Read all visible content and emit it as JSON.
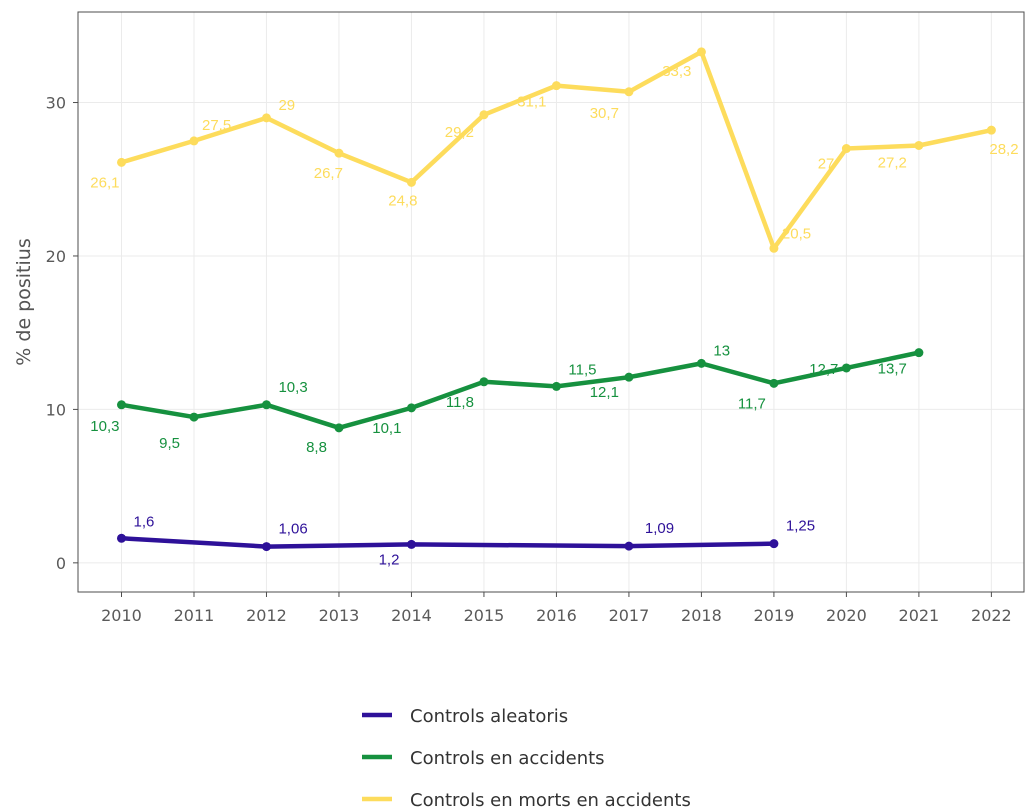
{
  "chart_data": {
    "type": "line",
    "title": "",
    "xlabel": "",
    "ylabel": "% de positius",
    "x": [
      2010,
      2011,
      2012,
      2013,
      2014,
      2015,
      2016,
      2017,
      2018,
      2019,
      2020,
      2021,
      2022
    ],
    "x_tick_labels": [
      "2010",
      "2011",
      "2012",
      "2013",
      "2014",
      "2015",
      "2016",
      "2017",
      "2018",
      "2019",
      "2020",
      "2021",
      "2022"
    ],
    "xlim": [
      2009.4,
      2022.45
    ],
    "ylim": [
      -1.9,
      35.9
    ],
    "y_ticks": [
      0,
      10,
      20,
      30
    ],
    "y_tick_labels": [
      "0",
      "10",
      "20",
      "30"
    ],
    "grid": true,
    "legend_position": "bottom",
    "series": [
      {
        "name": "Controls aleatoris",
        "color": "#2e1199",
        "points": [
          {
            "x": 2010,
            "y": 1.6,
            "label": "1,6"
          },
          {
            "x": 2012,
            "y": 1.06,
            "label": "1,06"
          },
          {
            "x": 2014,
            "y": 1.2,
            "label": "1,2"
          },
          {
            "x": 2017,
            "y": 1.09,
            "label": "1,09"
          },
          {
            "x": 2019,
            "y": 1.25,
            "label": "1,25"
          }
        ]
      },
      {
        "name": "Controls en accidents",
        "color": "#16913f",
        "points": [
          {
            "x": 2010,
            "y": 10.3,
            "label": "10,3"
          },
          {
            "x": 2011,
            "y": 9.5,
            "label": "9,5"
          },
          {
            "x": 2012,
            "y": 10.3,
            "label": "10,3"
          },
          {
            "x": 2013,
            "y": 8.8,
            "label": "8,8"
          },
          {
            "x": 2014,
            "y": 10.1,
            "label": "10,1"
          },
          {
            "x": 2015,
            "y": 11.8,
            "label": "11,8"
          },
          {
            "x": 2016,
            "y": 11.5,
            "label": "11,5"
          },
          {
            "x": 2017,
            "y": 12.1,
            "label": "12,1"
          },
          {
            "x": 2018,
            "y": 13,
            "label": "13"
          },
          {
            "x": 2019,
            "y": 11.7,
            "label": "11,7"
          },
          {
            "x": 2020,
            "y": 12.7,
            "label": "12,7"
          },
          {
            "x": 2021,
            "y": 13.7,
            "label": "13,7"
          }
        ]
      },
      {
        "name": "Controls en morts en accidents",
        "color": "#fddc5c",
        "points": [
          {
            "x": 2010,
            "y": 26.1,
            "label": "26,1"
          },
          {
            "x": 2011,
            "y": 27.5,
            "label": "27,5"
          },
          {
            "x": 2012,
            "y": 29,
            "label": "29"
          },
          {
            "x": 2013,
            "y": 26.7,
            "label": "26,7"
          },
          {
            "x": 2014,
            "y": 24.8,
            "label": "24,8"
          },
          {
            "x": 2015,
            "y": 29.2,
            "label": "29,2"
          },
          {
            "x": 2016,
            "y": 31.1,
            "label": "31,1"
          },
          {
            "x": 2017,
            "y": 30.7,
            "label": "30,7"
          },
          {
            "x": 2018,
            "y": 33.3,
            "label": "33,3"
          },
          {
            "x": 2019,
            "y": 20.5,
            "label": "20,5"
          },
          {
            "x": 2020,
            "y": 27,
            "label": "27"
          },
          {
            "x": 2021,
            "y": 27.2,
            "label": "27,2"
          },
          {
            "x": 2022,
            "y": 28.2,
            "label": "28,2"
          }
        ]
      }
    ]
  }
}
